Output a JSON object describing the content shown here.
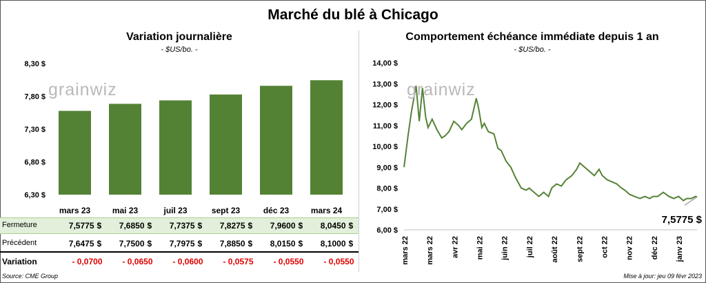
{
  "title": "Marché du blé à Chicago",
  "left_chart": {
    "title": "Variation  journalière",
    "subtitle": "- $US/bo. -"
  },
  "right_chart": {
    "title": "Comportement  échéance immédiate depuis 1 an",
    "subtitle": "- $US/bo. -",
    "last_value_label": "7,5775 $"
  },
  "logo_text": "grainwiz",
  "table": {
    "labels": {
      "close": "Fermeture",
      "prev": "Précédent",
      "var": "Variation"
    },
    "close": [
      "7,5775",
      "7,6850",
      "7,7375",
      "7,8275",
      "7,9600",
      "8,0450"
    ],
    "prev": [
      "7,6475",
      "7,7500",
      "7,7975",
      "7,8850",
      "8,0150",
      "8,1000"
    ],
    "var": [
      "- 0,0700",
      "- 0,0650",
      "- 0,0600",
      "- 0,0575",
      "- 0,0550",
      "- 0,0550"
    ],
    "dollar": "$"
  },
  "footer": {
    "source": "Source: CME Group",
    "updated": "Mise à jour: jeu 09 févr 2023"
  },
  "chart_data": [
    {
      "type": "bar",
      "title": "Variation  journalière",
      "ylabel": "- $US/bo. -",
      "categories": [
        "mars 23",
        "mai 23",
        "juil 23",
        "sept 23",
        "déc 23",
        "mars 24"
      ],
      "values": [
        7.5775,
        7.685,
        7.7375,
        7.8275,
        7.96,
        8.045
      ],
      "ylim": [
        6.3,
        8.3
      ],
      "yticks": [
        "6,30 $",
        "6,80 $",
        "7,30 $",
        "7,80 $",
        "8,30 $"
      ],
      "color": "#548235"
    },
    {
      "type": "line",
      "title": "Comportement  échéance immédiate depuis 1 an",
      "ylabel": "- $US/bo. -",
      "ylim": [
        6,
        14
      ],
      "yticks": [
        "6,00 $",
        "7,00 $",
        "8,00 $",
        "9,00 $",
        "10,00 $",
        "11,00 $",
        "12,00 $",
        "13,00 $",
        "14,00 $"
      ],
      "xticks": [
        "mars 22",
        "mars 22",
        "avr 22",
        "mai 22",
        "juin 22",
        "juil 22",
        "août 22",
        "sept 22",
        "oct 22",
        "nov 22",
        "déc 22",
        "janv 23"
      ],
      "color": "#548235",
      "x": [
        "2022-02-09",
        "2022-02-14",
        "2022-02-18",
        "2022-02-24",
        "2022-02-28",
        "2022-03-04",
        "2022-03-08",
        "2022-03-11",
        "2022-03-16",
        "2022-03-22",
        "2022-03-28",
        "2022-04-01",
        "2022-04-06",
        "2022-04-12",
        "2022-04-18",
        "2022-04-22",
        "2022-04-28",
        "2022-05-04",
        "2022-05-10",
        "2022-05-13",
        "2022-05-17",
        "2022-05-20",
        "2022-05-25",
        "2022-06-01",
        "2022-06-06",
        "2022-06-10",
        "2022-06-16",
        "2022-06-22",
        "2022-06-28",
        "2022-07-05",
        "2022-07-11",
        "2022-07-15",
        "2022-07-21",
        "2022-07-27",
        "2022-08-02",
        "2022-08-08",
        "2022-08-12",
        "2022-08-18",
        "2022-08-24",
        "2022-08-30",
        "2022-09-06",
        "2022-09-12",
        "2022-09-16",
        "2022-09-22",
        "2022-09-28",
        "2022-10-04",
        "2022-10-10",
        "2022-10-14",
        "2022-10-20",
        "2022-10-26",
        "2022-11-01",
        "2022-11-07",
        "2022-11-11",
        "2022-11-17",
        "2022-11-23",
        "2022-11-30",
        "2022-12-06",
        "2022-12-12",
        "2022-12-16",
        "2022-12-22",
        "2022-12-29",
        "2023-01-05",
        "2023-01-11",
        "2023-01-17",
        "2023-01-23",
        "2023-01-27",
        "2023-02-02",
        "2023-02-07",
        "2023-02-09"
      ],
      "values": [
        9.0,
        10.5,
        11.6,
        12.9,
        11.2,
        12.8,
        11.4,
        10.9,
        11.3,
        10.8,
        10.4,
        10.5,
        10.7,
        11.2,
        11.0,
        10.8,
        11.1,
        11.3,
        12.3,
        11.8,
        10.9,
        11.1,
        10.7,
        10.6,
        9.9,
        9.8,
        9.3,
        9.0,
        8.5,
        8.0,
        7.9,
        8.0,
        7.8,
        7.6,
        7.8,
        7.6,
        8.0,
        8.2,
        8.1,
        8.4,
        8.6,
        8.9,
        9.2,
        9.0,
        8.8,
        8.6,
        8.9,
        8.6,
        8.4,
        8.3,
        8.2,
        8.0,
        7.9,
        7.7,
        7.6,
        7.5,
        7.6,
        7.5,
        7.6,
        7.6,
        7.8,
        7.6,
        7.5,
        7.6,
        7.4,
        7.5,
        7.5,
        7.6,
        7.5775
      ]
    }
  ]
}
